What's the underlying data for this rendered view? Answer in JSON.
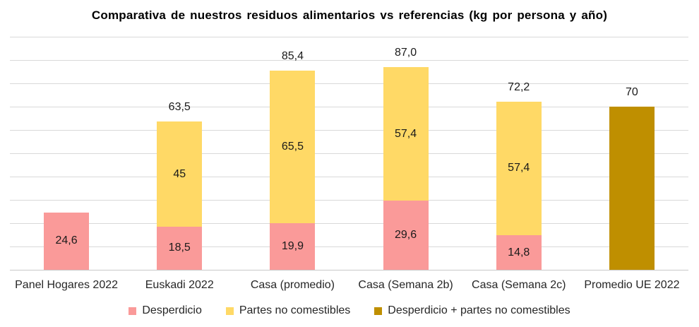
{
  "chart_data": {
    "type": "bar",
    "stacked": true,
    "title": "Comparativa de nuestros residuos alimentarios vs referencias (kg por persona y año)",
    "categories": [
      "Panel Hogares 2022",
      "Euskadi 2022",
      "Casa (promedio)",
      "Casa (Semana 2b)",
      "Casa (Semana 2c)",
      "Promedio UE 2022"
    ],
    "series": [
      {
        "name": "Desperdicio",
        "color": "#FA9A99",
        "values": [
          24.6,
          18.5,
          19.9,
          29.6,
          14.8,
          null
        ],
        "value_labels": [
          "24,6",
          "18,5",
          "19,9",
          "29,6",
          "14,8",
          null
        ]
      },
      {
        "name": "Partes no comestibles",
        "color": "#FFD966",
        "values": [
          null,
          45,
          65.5,
          57.4,
          57.4,
          null
        ],
        "value_labels": [
          null,
          "45",
          "65,5",
          "57,4",
          "57,4",
          null
        ]
      },
      {
        "name": "Desperdicio + partes no comestibles",
        "color": "#BF8F00",
        "values": [
          null,
          null,
          null,
          null,
          null,
          70
        ],
        "value_labels": [
          null,
          null,
          null,
          null,
          null,
          null
        ]
      }
    ],
    "totals": [
      24.6,
      63.5,
      85.4,
      87.0,
      72.2,
      70
    ],
    "total_labels": [
      null,
      "63,5",
      "85,4",
      "87,0",
      "72,2",
      "70"
    ],
    "ylabel": "",
    "xlabel": "",
    "unit": "kg por persona y año",
    "ylim": [
      0,
      100
    ],
    "grid_step": 10,
    "grid": true,
    "legend_position": "bottom",
    "colors": {
      "gridline": "#D9D9D9",
      "axis": "#C8C8C8",
      "label_text": "#1A1A1A",
      "title_text": "#000000",
      "background": "#FFFFFF"
    }
  }
}
